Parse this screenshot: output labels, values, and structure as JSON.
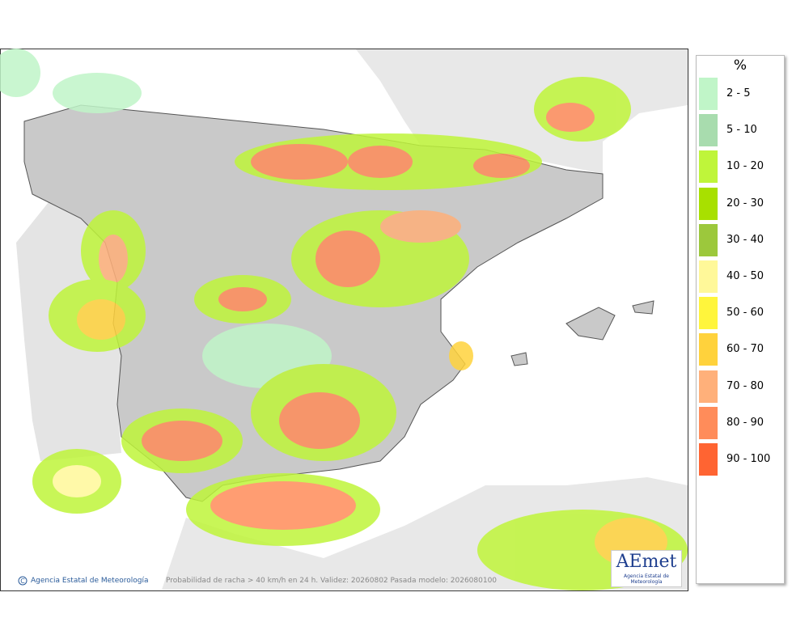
{
  "legend": {
    "title": "%",
    "items": [
      {
        "label": "2 - 5",
        "color": "#c0f5c8"
      },
      {
        "label": "5 - 10",
        "color": "#a8dcae"
      },
      {
        "label": "10 - 20",
        "color": "#bff53a"
      },
      {
        "label": "20 - 30",
        "color": "#a8e000"
      },
      {
        "label": "30 - 40",
        "color": "#9cc83c"
      },
      {
        "label": "40 - 50",
        "color": "#fff899"
      },
      {
        "label": "50 - 60",
        "color": "#fff53c"
      },
      {
        "label": "60 - 70",
        "color": "#ffd23c"
      },
      {
        "label": "70 - 80",
        "color": "#ffb07a"
      },
      {
        "label": "80 - 90",
        "color": "#ff8c5a"
      },
      {
        "label": "90 - 100",
        "color": "#ff6432"
      }
    ]
  },
  "footer": {
    "credit": "Agencia Estatal de Meteorología",
    "caption": "Probabilidad de racha > 40 km/h en 24 h. Validez: 20260802 Pasada modelo: 2026080100"
  },
  "logo": {
    "name": "AEmet",
    "subtitle": "Agencia Estatal de Meteorología"
  }
}
